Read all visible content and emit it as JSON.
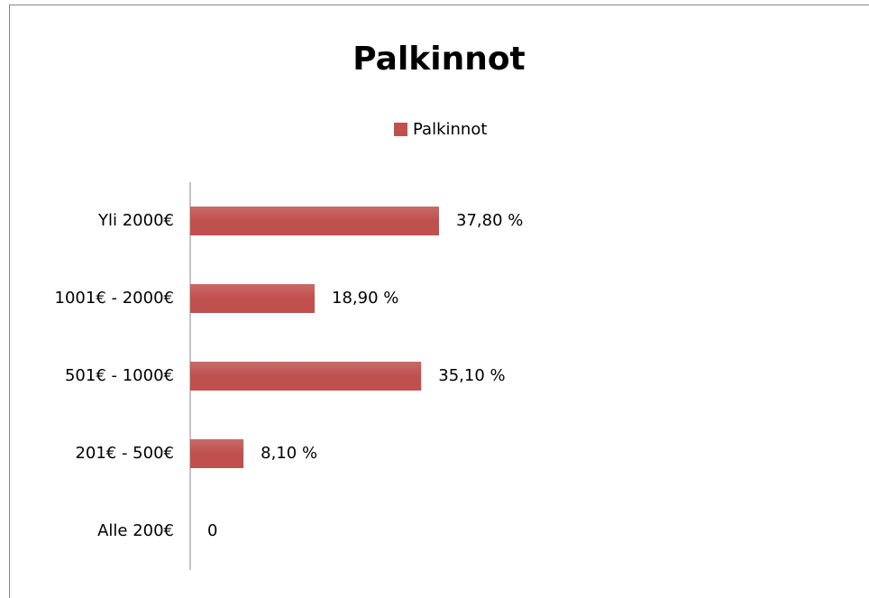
{
  "chart_data": {
    "type": "bar",
    "orientation": "horizontal",
    "title": "Palkinnot",
    "categories": [
      "Yli 2000€",
      "1001€ - 2000€",
      "501€ - 1000€",
      "201€ - 500€",
      "Alle 200€"
    ],
    "series": [
      {
        "name": "Palkinnot",
        "color": "#c0504d",
        "values": [
          37.8,
          18.9,
          35.1,
          8.1,
          0
        ],
        "value_labels": [
          "37,80 %",
          "18,90 %",
          "35,10 %",
          "8,10 %",
          "0"
        ]
      }
    ]
  }
}
